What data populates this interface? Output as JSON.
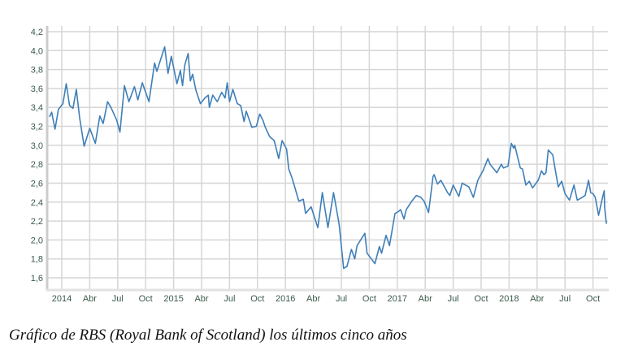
{
  "caption": "Gráfico de RBS (Royal Bank of Scotland) los últimos cinco años",
  "colors": {
    "line": "#3f7fb8",
    "grid": "#d6d6d6",
    "axis": "#cccccc",
    "tick_text": "#3a5a4a"
  },
  "chart_data": {
    "type": "line",
    "title": "",
    "xlabel": "",
    "ylabel": "",
    "ylim": [
      1.5,
      4.25
    ],
    "yticks": [
      1.6,
      1.8,
      2.0,
      2.2,
      2.4,
      2.6,
      2.8,
      3.0,
      3.2,
      3.4,
      3.6,
      3.8,
      4.0,
      4.2
    ],
    "ytick_labels": [
      "1,6",
      "1,8",
      "2,0",
      "2,2",
      "2,4",
      "2,6",
      "2,8",
      "3,0",
      "3,2",
      "3,4",
      "3,6",
      "3,8",
      "4,0",
      "4,2"
    ],
    "xlim": [
      2013.87,
      2018.88
    ],
    "xticks": [
      2014.0,
      2014.25,
      2014.5,
      2014.75,
      2015.0,
      2015.25,
      2015.5,
      2015.75,
      2016.0,
      2016.25,
      2016.5,
      2016.75,
      2017.0,
      2017.25,
      2017.5,
      2017.75,
      2018.0,
      2018.25,
      2018.5,
      2018.75
    ],
    "xtick_labels": [
      "2014",
      "Abr",
      "Jul",
      "Oct",
      "2015",
      "Abr",
      "Jul",
      "Oct",
      "2016",
      "Abr",
      "Jul",
      "Oct",
      "2017",
      "Abr",
      "Jul",
      "Oct",
      "2018",
      "Abr",
      "Jul",
      "Oct"
    ],
    "grid": true,
    "legend": false,
    "series": [
      {
        "name": "RBS",
        "points": [
          [
            2013.89,
            3.3
          ],
          [
            2013.91,
            3.35
          ],
          [
            2013.94,
            3.17
          ],
          [
            2013.97,
            3.38
          ],
          [
            2014.01,
            3.44
          ],
          [
            2014.04,
            3.65
          ],
          [
            2014.07,
            3.42
          ],
          [
            2014.1,
            3.39
          ],
          [
            2014.13,
            3.59
          ],
          [
            2014.16,
            3.29
          ],
          [
            2014.2,
            2.99
          ],
          [
            2014.25,
            3.18
          ],
          [
            2014.3,
            3.02
          ],
          [
            2014.34,
            3.31
          ],
          [
            2014.37,
            3.23
          ],
          [
            2014.41,
            3.46
          ],
          [
            2014.44,
            3.4
          ],
          [
            2014.49,
            3.27
          ],
          [
            2014.52,
            3.14
          ],
          [
            2014.56,
            3.63
          ],
          [
            2014.6,
            3.46
          ],
          [
            2014.65,
            3.62
          ],
          [
            2014.68,
            3.48
          ],
          [
            2014.72,
            3.66
          ],
          [
            2014.78,
            3.46
          ],
          [
            2014.83,
            3.87
          ],
          [
            2014.85,
            3.78
          ],
          [
            2014.92,
            4.04
          ],
          [
            2014.95,
            3.76
          ],
          [
            2014.98,
            3.94
          ],
          [
            2015.03,
            3.65
          ],
          [
            2015.06,
            3.79
          ],
          [
            2015.08,
            3.63
          ],
          [
            2015.1,
            3.85
          ],
          [
            2015.13,
            3.97
          ],
          [
            2015.15,
            3.68
          ],
          [
            2015.17,
            3.75
          ],
          [
            2015.2,
            3.58
          ],
          [
            2015.24,
            3.44
          ],
          [
            2015.28,
            3.5
          ],
          [
            2015.31,
            3.53
          ],
          [
            2015.32,
            3.4
          ],
          [
            2015.35,
            3.53
          ],
          [
            2015.39,
            3.46
          ],
          [
            2015.43,
            3.56
          ],
          [
            2015.46,
            3.5
          ],
          [
            2015.48,
            3.66
          ],
          [
            2015.5,
            3.46
          ],
          [
            2015.53,
            3.59
          ],
          [
            2015.57,
            3.44
          ],
          [
            2015.6,
            3.42
          ],
          [
            2015.63,
            3.25
          ],
          [
            2015.65,
            3.36
          ],
          [
            2015.7,
            3.19
          ],
          [
            2015.74,
            3.2
          ],
          [
            2015.77,
            3.33
          ],
          [
            2015.8,
            3.26
          ],
          [
            2015.82,
            3.19
          ],
          [
            2015.86,
            3.09
          ],
          [
            2015.9,
            3.05
          ],
          [
            2015.94,
            2.86
          ],
          [
            2015.97,
            3.05
          ],
          [
            2016.01,
            2.96
          ],
          [
            2016.03,
            2.75
          ],
          [
            2016.06,
            2.65
          ],
          [
            2016.12,
            2.41
          ],
          [
            2016.16,
            2.43
          ],
          [
            2016.18,
            2.28
          ],
          [
            2016.23,
            2.35
          ],
          [
            2016.29,
            2.13
          ],
          [
            2016.33,
            2.5
          ],
          [
            2016.38,
            2.13
          ],
          [
            2016.43,
            2.5
          ],
          [
            2016.48,
            2.17
          ],
          [
            2016.52,
            1.7
          ],
          [
            2016.55,
            1.72
          ],
          [
            2016.59,
            1.9
          ],
          [
            2016.62,
            1.8
          ],
          [
            2016.64,
            1.94
          ],
          [
            2016.71,
            2.07
          ],
          [
            2016.73,
            1.86
          ],
          [
            2016.8,
            1.75
          ],
          [
            2016.84,
            1.93
          ],
          [
            2016.86,
            1.86
          ],
          [
            2016.9,
            2.05
          ],
          [
            2016.93,
            1.94
          ],
          [
            2016.98,
            2.28
          ],
          [
            2017.01,
            2.3
          ],
          [
            2017.03,
            2.32
          ],
          [
            2017.06,
            2.22
          ],
          [
            2017.08,
            2.32
          ],
          [
            2017.13,
            2.41
          ],
          [
            2017.17,
            2.47
          ],
          [
            2017.21,
            2.45
          ],
          [
            2017.24,
            2.41
          ],
          [
            2017.28,
            2.29
          ],
          [
            2017.32,
            2.67
          ],
          [
            2017.33,
            2.69
          ],
          [
            2017.36,
            2.59
          ],
          [
            2017.39,
            2.63
          ],
          [
            2017.45,
            2.5
          ],
          [
            2017.47,
            2.47
          ],
          [
            2017.5,
            2.58
          ],
          [
            2017.55,
            2.46
          ],
          [
            2017.58,
            2.6
          ],
          [
            2017.64,
            2.56
          ],
          [
            2017.68,
            2.45
          ],
          [
            2017.72,
            2.63
          ],
          [
            2017.77,
            2.74
          ],
          [
            2017.81,
            2.86
          ],
          [
            2017.83,
            2.8
          ],
          [
            2017.89,
            2.71
          ],
          [
            2017.93,
            2.8
          ],
          [
            2017.95,
            2.76
          ],
          [
            2017.99,
            2.78
          ],
          [
            2018.02,
            3.02
          ],
          [
            2018.04,
            2.97
          ],
          [
            2018.05,
            3.0
          ],
          [
            2018.1,
            2.76
          ],
          [
            2018.12,
            2.75
          ],
          [
            2018.15,
            2.58
          ],
          [
            2018.18,
            2.62
          ],
          [
            2018.21,
            2.55
          ],
          [
            2018.26,
            2.63
          ],
          [
            2018.29,
            2.73
          ],
          [
            2018.31,
            2.69
          ],
          [
            2018.33,
            2.71
          ],
          [
            2018.35,
            2.95
          ],
          [
            2018.39,
            2.9
          ],
          [
            2018.41,
            2.76
          ],
          [
            2018.44,
            2.56
          ],
          [
            2018.47,
            2.62
          ],
          [
            2018.5,
            2.49
          ],
          [
            2018.54,
            2.42
          ],
          [
            2018.58,
            2.58
          ],
          [
            2018.61,
            2.42
          ],
          [
            2018.64,
            2.44
          ],
          [
            2018.68,
            2.47
          ],
          [
            2018.71,
            2.63
          ],
          [
            2018.73,
            2.5
          ],
          [
            2018.75,
            2.49
          ],
          [
            2018.77,
            2.45
          ],
          [
            2018.8,
            2.26
          ],
          [
            2018.83,
            2.42
          ],
          [
            2018.85,
            2.52
          ],
          [
            2018.855,
            2.34
          ],
          [
            2018.87,
            2.17
          ]
        ]
      }
    ]
  }
}
